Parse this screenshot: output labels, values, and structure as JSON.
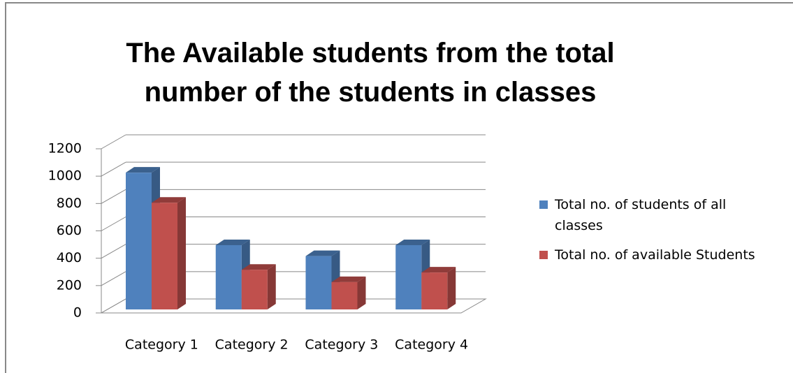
{
  "chart_data": {
    "type": "bar3d",
    "title": "The Available students from the total number of the students in classes",
    "categories": [
      "Category 1",
      "Category 2",
      "Category 3",
      "Category 4"
    ],
    "series": [
      {
        "name": "Total no. of students of all classes",
        "color": "#4f81bd",
        "values": [
          1000,
          470,
          390,
          470
        ]
      },
      {
        "name": "Total no. of available Students",
        "color": "#c0504d",
        "values": [
          780,
          290,
          200,
          270
        ]
      }
    ],
    "ylim": [
      0,
      1200
    ],
    "yticks": [
      0,
      200,
      400,
      600,
      800,
      1000,
      1200
    ],
    "grid": true,
    "legend": "right"
  }
}
